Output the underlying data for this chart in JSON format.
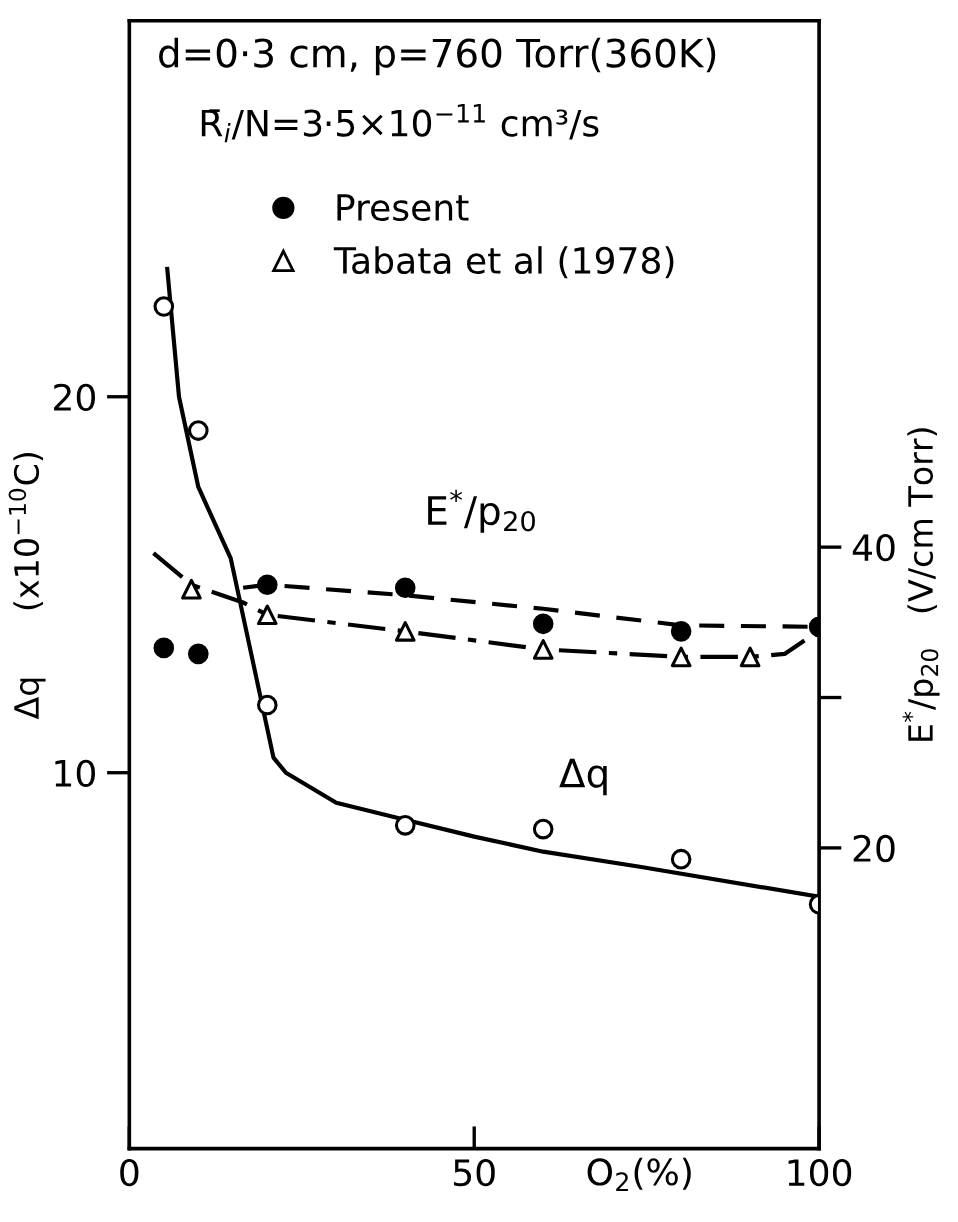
{
  "chart_data": {
    "type": "scatter",
    "title": "d=0·3 cm, p=760 Torr(360K)",
    "subtitle": "R̄$_{i}$/N=3·5×10$^{−11}$ cm³/s",
    "xlabel": "O$_{2}$(%)",
    "ylabel": "Δq      (x10$^{−10}$C)",
    "y2label": "E$^{*}$/p$_{20}$   (V/cm Torr)",
    "xlim": [
      0,
      100
    ],
    "xticks": [
      0,
      50,
      100
    ],
    "ylim": [
      0,
      30
    ],
    "yticks": [
      10,
      20
    ],
    "y2lim": [
      0,
      75
    ],
    "y2ticks": [
      20,
      {
        "value": 30,
        "label": null
      },
      40
    ],
    "grid": false,
    "legend": "top left",
    "annotations": [
      "E$^{*}$/p$_{20}$",
      "Δq"
    ],
    "series": [
      {
        "color": "#000000",
        "colors": [
          "#ffffff",
          "#ffffff",
          "#ffffff",
          "#ffffff",
          "#ffffff",
          "#ffffff",
          "#ffffff"
        ],
        "marker": "circle",
        "x": [
          5,
          10,
          20,
          40,
          60,
          80,
          100
        ],
        "values": [
          22.4,
          19.1,
          11.8,
          8.6,
          8.5,
          7.7,
          6.5
        ]
      },
      {
        "type": "line",
        "color": "#000000",
        "line_style": "solid",
        "x": [
          5.5,
          7.2,
          10,
          14.7,
          20.9,
          22.7,
          30,
          38.8,
          50,
          60,
          74,
          100
        ],
        "values": [
          23.4,
          20,
          17.6,
          15.7,
          10.4,
          10,
          9.2,
          8.8,
          8.3,
          7.9,
          7.5,
          6.7
        ]
      },
      {
        "name": "Present",
        "color": "#000000",
        "marker": "circle",
        "axis": "y2",
        "x": [
          5,
          10,
          20,
          40,
          60,
          80,
          100
        ],
        "values": [
          33.3,
          32.9,
          37.5,
          37.3,
          34.9,
          34.4,
          34.7
        ]
      },
      {
        "type": "line",
        "color": "#000000",
        "line_style": "dashed",
        "axis": "y2",
        "x": [
          16.5,
          20,
          40,
          60,
          80,
          100
        ],
        "values": [
          37.3,
          37.5,
          36.8,
          35.9,
          34.8,
          34.7
        ]
      },
      {
        "name": "Tabata et al (1978)",
        "color": "#000000",
        "colors": [
          "#ffffff",
          "#ffffff",
          "#ffffff",
          "#ffffff",
          "#ffffff",
          "#ffffff"
        ],
        "marker": "triangle",
        "axis": "y2",
        "x": [
          9,
          20,
          40,
          60,
          80,
          90
        ],
        "values": [
          37.2,
          35.5,
          34.4,
          33.2,
          32.7,
          32.7
        ]
      },
      {
        "type": "line",
        "color": "#000000",
        "line_style": "dashdot",
        "axis": "y2",
        "x": [
          3.5,
          9,
          16.6,
          20,
          40,
          60,
          80,
          90,
          95,
          99.5
        ],
        "values": [
          39.6,
          37.5,
          36.3,
          35.5,
          34.4,
          33.2,
          32.7,
          32.7,
          32.9,
          34.3
        ]
      }
    ]
  }
}
